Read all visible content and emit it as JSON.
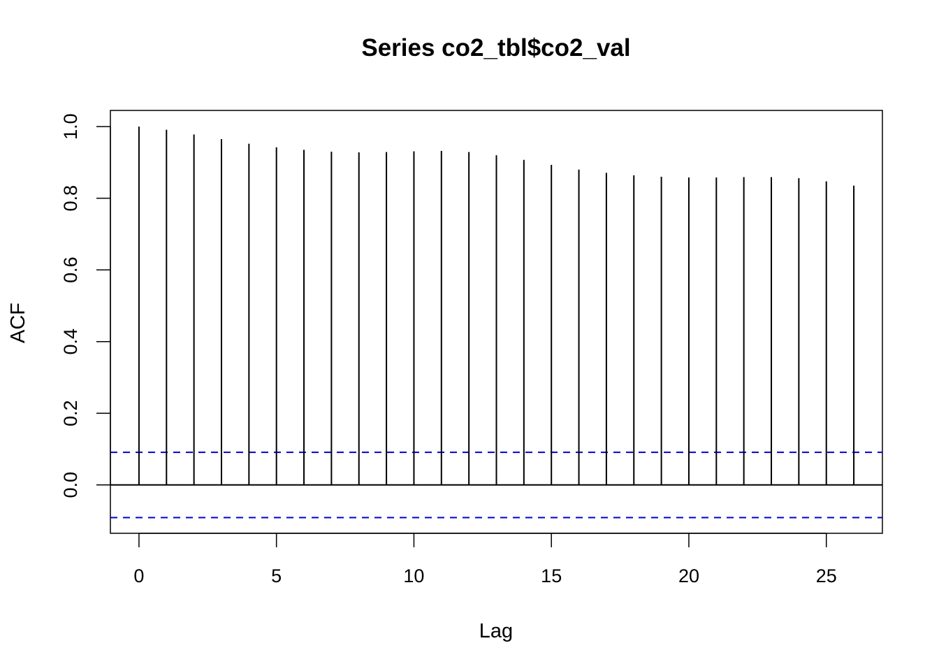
{
  "chart_data": {
    "type": "bar",
    "title": "Series  co2_tbl$co2_val",
    "xlabel": "Lag",
    "ylabel": "ACF",
    "x": [
      0,
      1,
      2,
      3,
      4,
      5,
      6,
      7,
      8,
      9,
      10,
      11,
      12,
      13,
      14,
      15,
      16,
      17,
      18,
      19,
      20,
      21,
      22,
      23,
      24,
      25,
      26
    ],
    "values": [
      1.0,
      0.991,
      0.978,
      0.965,
      0.952,
      0.942,
      0.935,
      0.93,
      0.928,
      0.929,
      0.931,
      0.932,
      0.929,
      0.92,
      0.907,
      0.893,
      0.88,
      0.871,
      0.864,
      0.86,
      0.858,
      0.858,
      0.859,
      0.859,
      0.856,
      0.847,
      0.835
    ],
    "xlim": [
      -1.04,
      27.04
    ],
    "ylim": [
      -0.135,
      1.045
    ],
    "xticks": [
      0,
      5,
      10,
      15,
      20,
      25
    ],
    "yticks": [
      0.0,
      0.2,
      0.4,
      0.6,
      0.8,
      1.0
    ],
    "xtick_labels": [
      "0",
      "5",
      "10",
      "15",
      "20",
      "25"
    ],
    "ytick_labels": [
      "0.0",
      "0.2",
      "0.4",
      "0.6",
      "0.8",
      "1.0"
    ],
    "confidence_limits": [
      0.091,
      -0.091
    ],
    "confidence_color": "#0000cc",
    "bar_color": "#000000",
    "grid": false
  }
}
